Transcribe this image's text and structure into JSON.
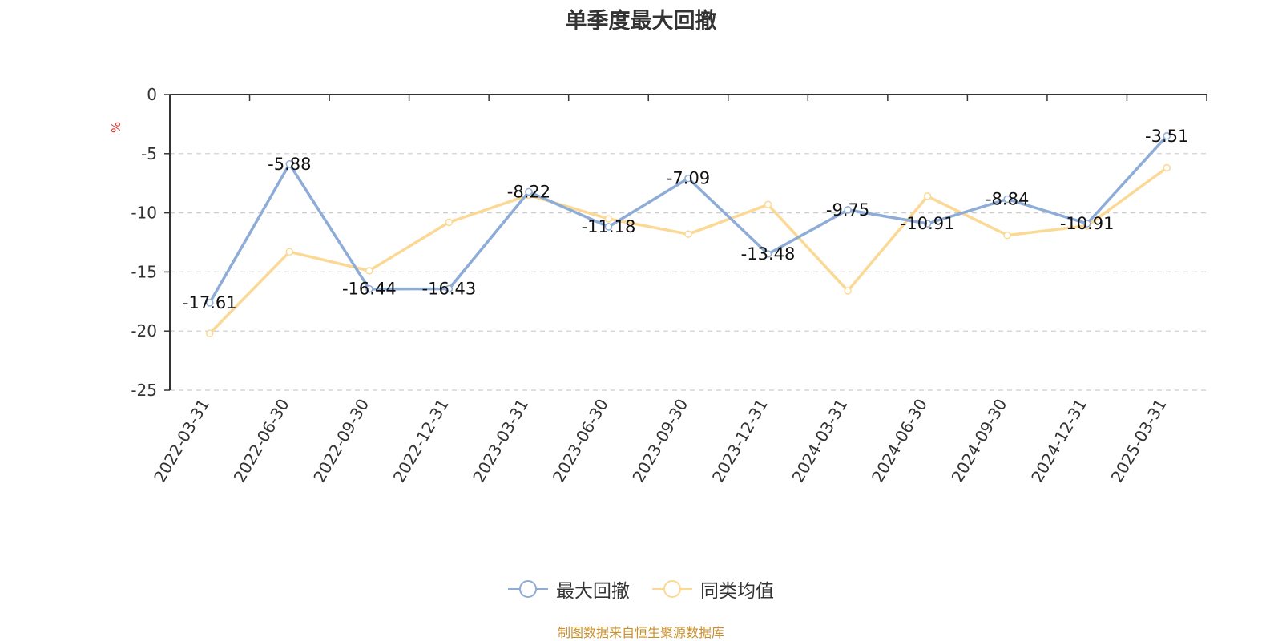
{
  "chart_data": {
    "type": "line",
    "title": "单季度最大回撤",
    "ylabel": "%",
    "xlabel": "",
    "ylim": [
      -25,
      0
    ],
    "yticks": [
      0,
      -5,
      -10,
      -15,
      -20,
      -25
    ],
    "grid": true,
    "legend_position": "bottom",
    "categories": [
      "2022-03-31",
      "2022-06-30",
      "2022-09-30",
      "2022-12-31",
      "2023-03-31",
      "2023-06-30",
      "2023-09-30",
      "2023-12-31",
      "2024-03-31",
      "2024-06-30",
      "2024-09-30",
      "2024-12-31",
      "2025-03-31"
    ],
    "series": [
      {
        "name": "最大回撤",
        "color": "#8eacd8",
        "values": [
          -17.61,
          -5.88,
          -16.44,
          -16.43,
          -8.22,
          -11.18,
          -7.09,
          -13.48,
          -9.75,
          -10.91,
          -8.84,
          -10.91,
          -3.51
        ],
        "show_labels": true
      },
      {
        "name": "同类均值",
        "color": "#fbd995",
        "values": [
          -20.2,
          -13.3,
          -14.9,
          -10.8,
          -8.5,
          -10.5,
          -11.8,
          -9.3,
          -16.6,
          -8.6,
          -11.9,
          -11.1,
          -6.2
        ],
        "show_labels": false
      }
    ]
  },
  "source_note": "制图数据来自恒生聚源数据库",
  "colors": {
    "axis": "#333333",
    "grid": "#cccccc",
    "ylabel": "#e53935",
    "source_note": "#c8902e"
  }
}
